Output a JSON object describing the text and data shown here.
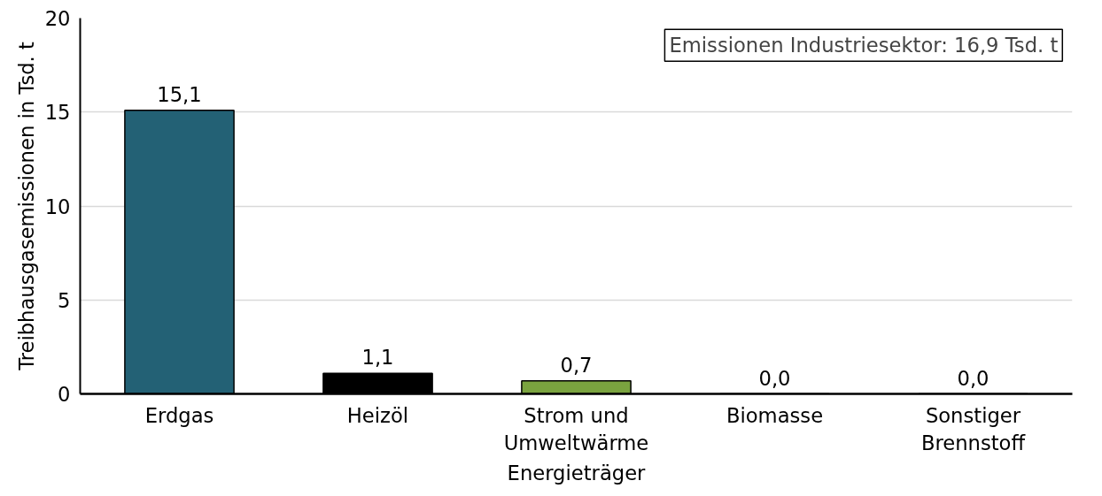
{
  "chart_data": {
    "type": "bar",
    "xlabel": "Energieträger",
    "ylabel": "Treibhausgasemissionen in Tsd. t",
    "categories": [
      "Erdgas",
      "Heizöl",
      "Strom und Umweltwärme",
      "Biomasse",
      "Sonstiger Brennstoff"
    ],
    "values": [
      15.1,
      1.1,
      0.7,
      0.0,
      0.0
    ],
    "colors": [
      "#236175",
      "#000000",
      "#7aa33f",
      "#000000",
      "#000000"
    ],
    "value_labels": [
      "15,1",
      "1,1",
      "0,7",
      "0,0",
      "0,0"
    ],
    "ylim": [
      0,
      20
    ],
    "yticks": [
      0,
      5,
      10,
      15,
      20
    ],
    "grid": "y",
    "annotations": [
      "Emissionen Industriesektor: 16,9 Tsd. t"
    ]
  }
}
